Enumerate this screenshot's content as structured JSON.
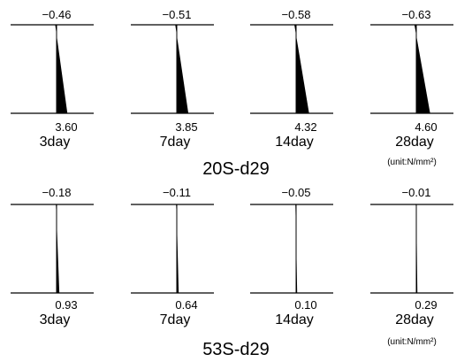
{
  "colors": {
    "fill": "#000000",
    "line": "#000000",
    "background": "#ffffff"
  },
  "groups": [
    {
      "title": "20S-d29",
      "unit": "(unit:N/mm²)",
      "panels": [
        {
          "top_value": "−0.46",
          "top": -0.46,
          "bottom_value": "3.60",
          "bottom": 3.6,
          "label": "3day"
        },
        {
          "top_value": "−0.51",
          "top": -0.51,
          "bottom_value": "3.85",
          "bottom": 3.85,
          "label": "7day"
        },
        {
          "top_value": "−0.58",
          "top": -0.58,
          "bottom_value": "4.32",
          "bottom": 4.32,
          "label": "14day"
        },
        {
          "top_value": "−0.63",
          "top": -0.63,
          "bottom_value": "4.60",
          "bottom": 4.6,
          "label": "28day"
        }
      ]
    },
    {
      "title": "53S-d29",
      "unit": "(unit:N/mm²)",
      "panels": [
        {
          "top_value": "−0.18",
          "top": -0.18,
          "bottom_value": "0.93",
          "bottom": 0.93,
          "label": "3day"
        },
        {
          "top_value": "−0.11",
          "top": -0.11,
          "bottom_value": "0.64",
          "bottom": 0.64,
          "label": "7day"
        },
        {
          "top_value": "−0.05",
          "top": -0.05,
          "bottom_value": "0.10",
          "bottom": 0.1,
          "label": "14day"
        },
        {
          "top_value": "−0.01",
          "top": -0.01,
          "bottom_value": "0.29",
          "bottom": 0.29,
          "label": "28day"
        }
      ]
    }
  ]
}
